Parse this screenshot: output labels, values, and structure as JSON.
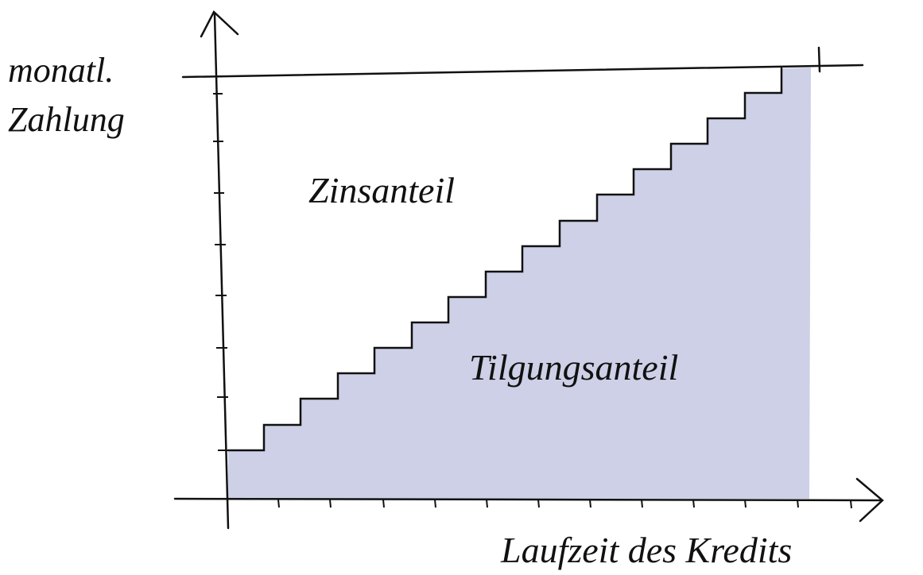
{
  "y_axis_label": [
    "monatl.",
    "Zahlung"
  ],
  "regions": {
    "upper": "Zinsanteil",
    "lower": "Tilgungsanteil"
  },
  "x_axis_label": "Laufzeit des Kredits"
}
